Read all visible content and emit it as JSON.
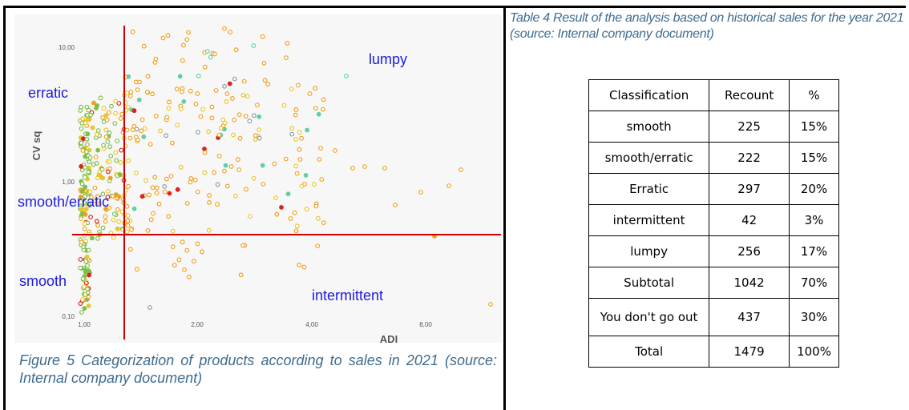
{
  "figure": {
    "caption": "Figure 5 Categorization of products according to sales in 2021 (source: Internal company document)"
  },
  "table": {
    "caption": "Table 4 Result of the analysis based on historical sales for the year 2021 (source: Internal company document)",
    "headers": [
      "Classification",
      "Recount",
      "%"
    ],
    "rows": [
      [
        "smooth",
        "225",
        "15%"
      ],
      [
        "smooth/erratic",
        "222",
        "15%"
      ],
      [
        "Erratic",
        "297",
        "20%"
      ],
      [
        "intermittent",
        "42",
        "3%"
      ],
      [
        "lumpy",
        "256",
        "17%"
      ],
      [
        "Subtotal",
        "1042",
        "70%"
      ],
      [
        "You don't go out",
        "437",
        "30%"
      ],
      [
        "Total",
        "1479",
        "100%"
      ]
    ]
  },
  "chart_data": {
    "type": "scatter",
    "title": "",
    "xlabel": "ADI",
    "ylabel": "CV sq",
    "x_tick_labels": [
      "1,00",
      "2,00",
      "4,00",
      "8,00"
    ],
    "y_tick_labels": [
      "10,00",
      "1,00",
      "0,10"
    ],
    "region_labels": [
      "lumpy",
      "erratic",
      "smooth/erratic",
      "smooth",
      "intermittent"
    ],
    "threshold_lines": {
      "adi": 1.32,
      "cv_sq": 0.49
    },
    "colors": {
      "green": "#7cc04a",
      "yellow": "#e8c62e",
      "orange": "#f0a020",
      "red": "#e02020",
      "teal": "#5fd0a0",
      "gray": "#8a9aa8",
      "threshold": "#cc0000",
      "region_label": "#1a1ae0"
    }
  }
}
